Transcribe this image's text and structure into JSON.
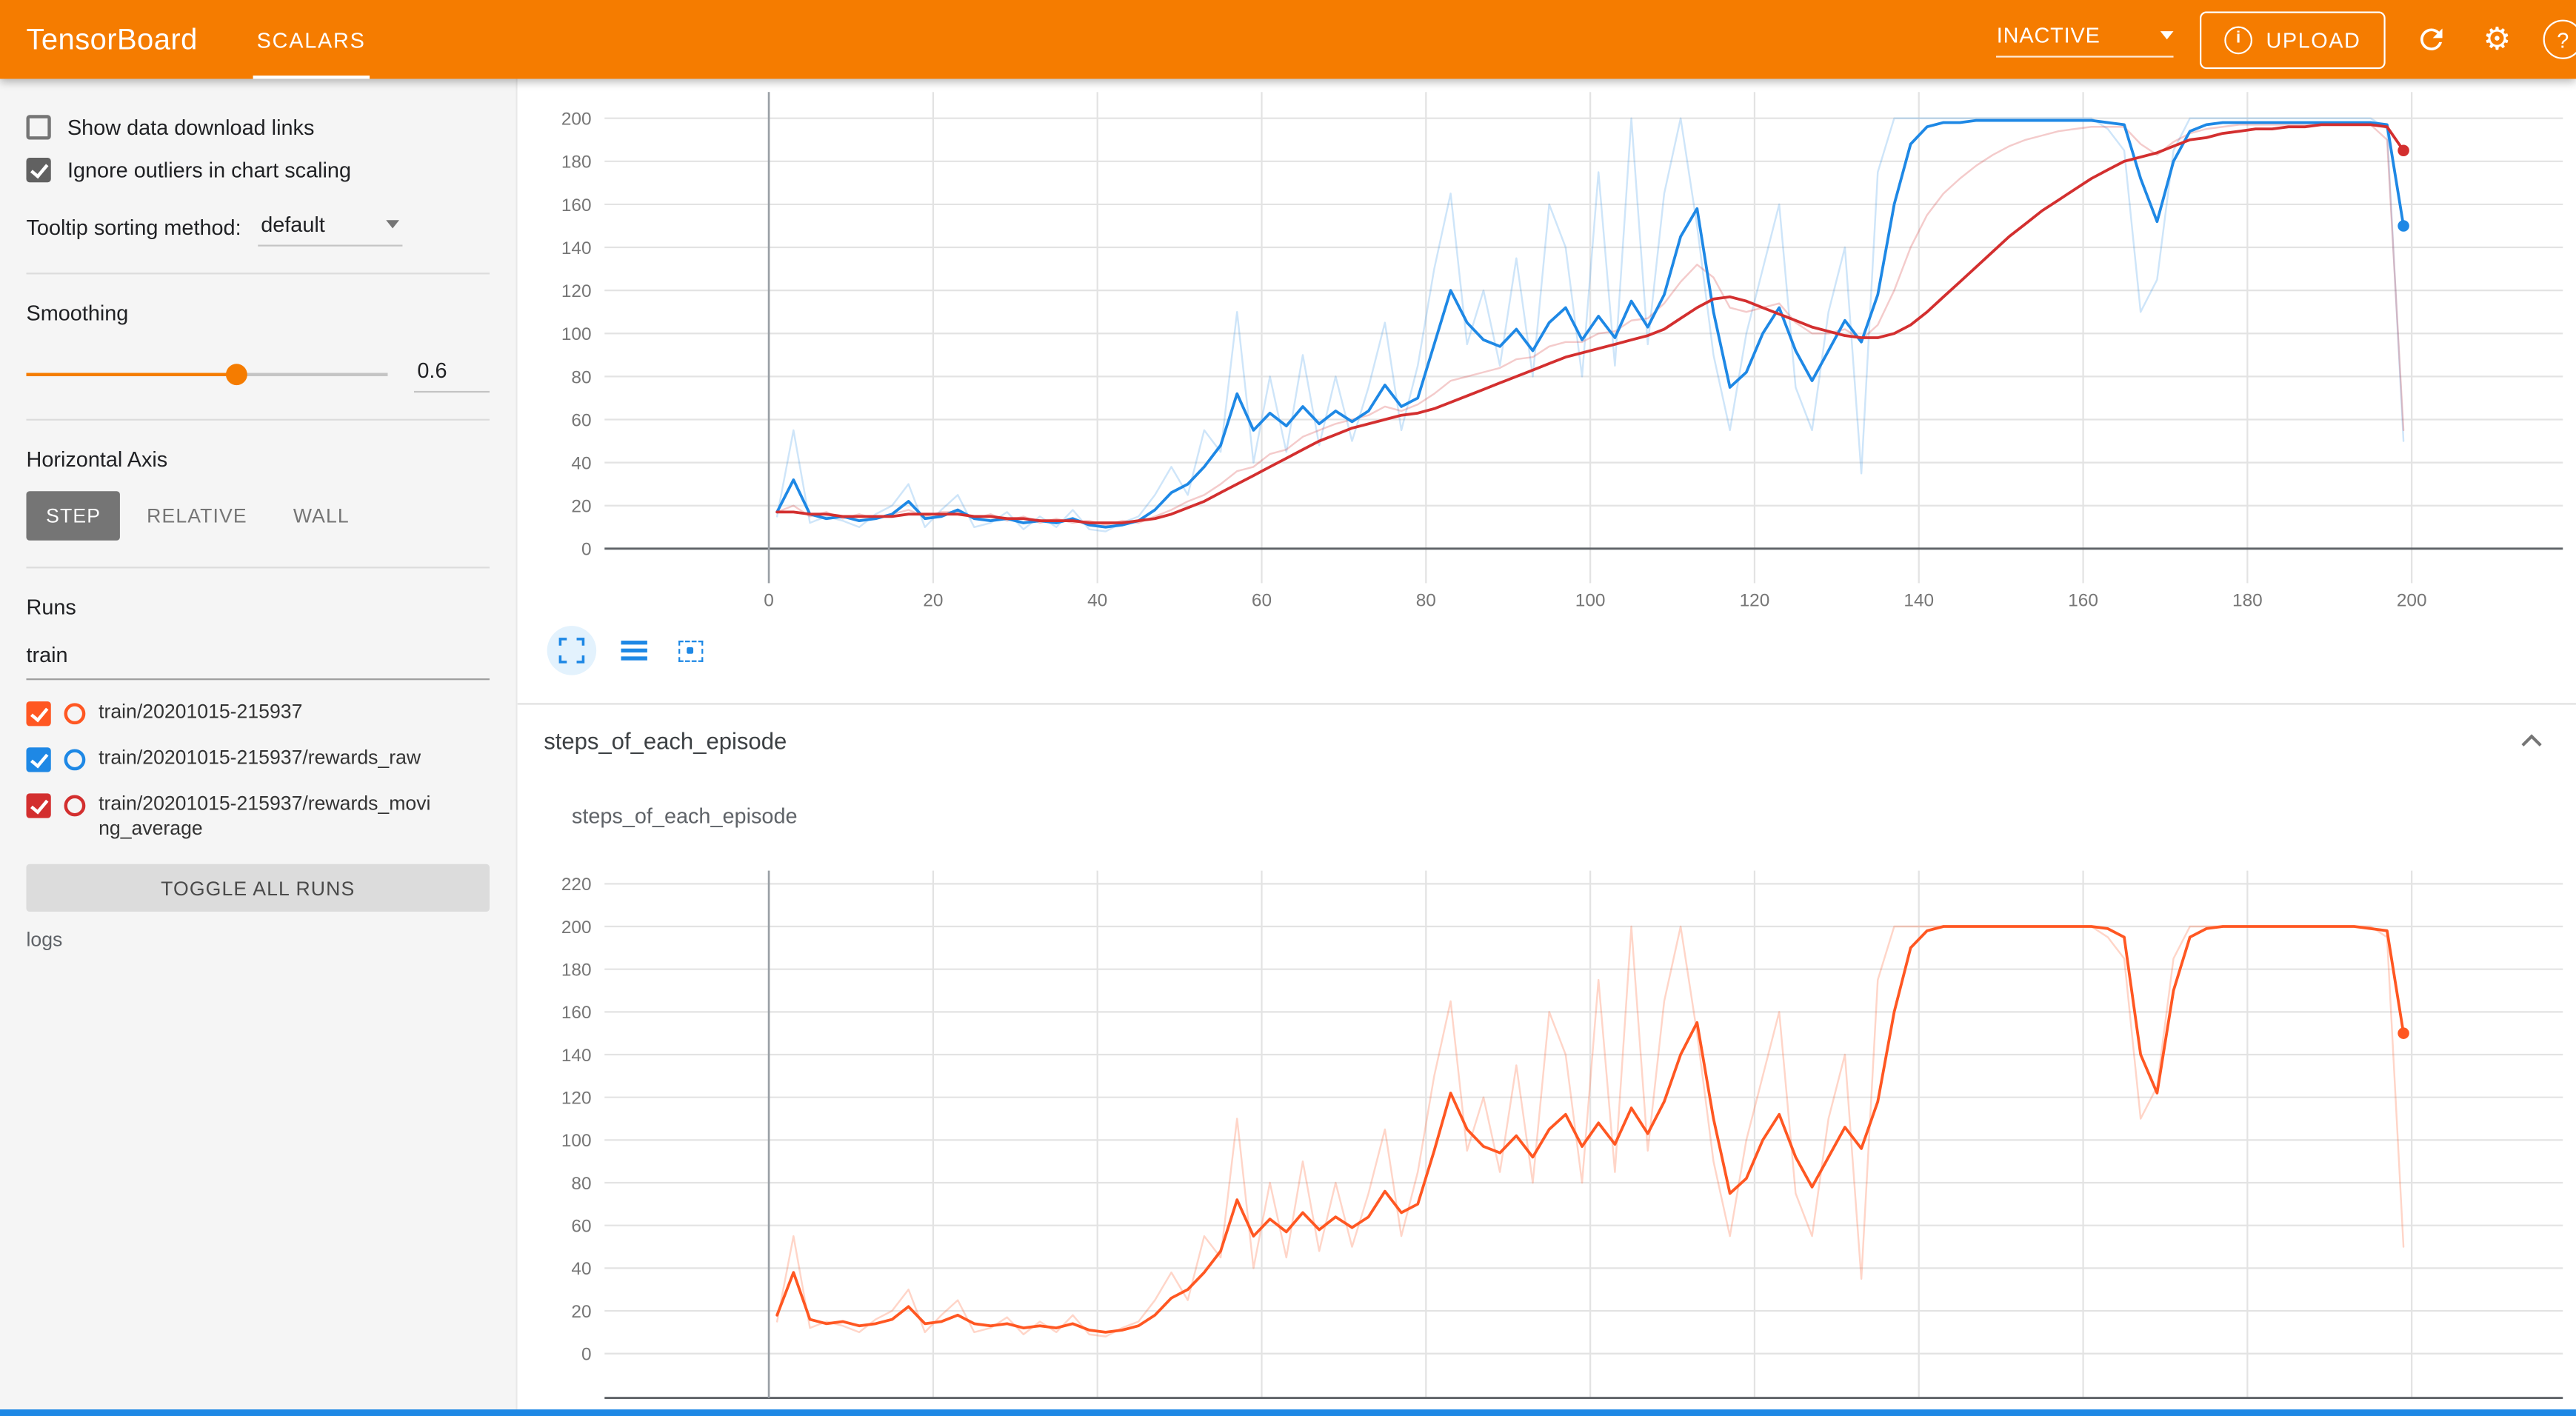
{
  "appbar": {
    "title": "TensorBoard",
    "tabs": [
      {
        "label": "SCALARS",
        "active": true
      }
    ],
    "status_dropdown": "INACTIVE",
    "upload_label": "UPLOAD",
    "icons": [
      "info",
      "refresh",
      "settings",
      "help"
    ],
    "accent_color": "#f57c00"
  },
  "sidebar": {
    "checkbox_download": {
      "label": "Show data download links",
      "checked": false
    },
    "checkbox_outliers": {
      "label": "Ignore outliers in chart scaling",
      "checked": true
    },
    "tooltip_sorting": {
      "label": "Tooltip sorting method:",
      "value": "default"
    },
    "smoothing": {
      "label": "Smoothing",
      "value": "0.6",
      "fraction": 0.58
    },
    "horizontal_axis": {
      "label": "Horizontal Axis",
      "options": [
        "STEP",
        "RELATIVE",
        "WALL"
      ],
      "selected": "STEP"
    },
    "runs": {
      "label": "Runs",
      "filter_value": "train",
      "items": [
        {
          "label": "train/20201015-215937",
          "color": "#ff5722",
          "checked": true
        },
        {
          "label": "train/20201015-215937/rewards_raw",
          "color": "#1e88e5",
          "checked": true
        },
        {
          "label": "train/20201015-215937/rewards_moving_average",
          "color": "#d32f2f",
          "checked": true
        }
      ],
      "toggle_all": "TOGGLE ALL RUNS"
    },
    "logs_label": "logs"
  },
  "main": {
    "section_header": "steps_of_each_episode",
    "card_title": "steps_of_each_episode",
    "toolbar_icons": [
      "expand",
      "view-data-table",
      "fit-domain"
    ]
  },
  "chart_data": [
    {
      "id": "chart1",
      "type": "line",
      "title": "",
      "xlim": [
        0,
        200
      ],
      "ylim": [
        0,
        200
      ],
      "grid": true,
      "xticks": [
        0,
        20,
        40,
        60,
        80,
        100,
        120,
        140,
        160,
        180,
        200
      ],
      "yticks": [
        0,
        20,
        40,
        60,
        80,
        100,
        120,
        140,
        160,
        180,
        200
      ],
      "series": [
        {
          "run": "train/20201015-215937/rewards_raw",
          "kind": "raw",
          "color": "#1e88e5",
          "opacity": 0.22,
          "width": 1.1,
          "x_start": 1,
          "x_step": 2,
          "values": [
            15,
            55,
            12,
            15,
            13,
            10,
            16,
            20,
            30,
            10,
            18,
            25,
            10,
            12,
            17,
            9,
            15,
            10,
            18,
            9,
            8,
            12,
            15,
            25,
            38,
            25,
            55,
            45,
            110,
            40,
            80,
            45,
            90,
            48,
            80,
            50,
            75,
            105,
            55,
            85,
            130,
            165,
            95,
            120,
            85,
            135,
            80,
            160,
            140,
            80,
            175,
            85,
            200,
            95,
            165,
            200,
            150,
            90,
            55,
            100,
            130,
            160,
            75,
            55,
            110,
            140,
            35,
            175,
            200,
            200,
            200,
            200,
            200,
            200,
            200,
            200,
            200,
            200,
            200,
            200,
            200,
            195,
            185,
            110,
            125,
            185,
            200,
            200,
            200,
            200,
            200,
            200,
            200,
            200,
            200,
            200,
            200,
            200,
            195,
            50
          ]
        },
        {
          "run": "train/20201015-215937/rewards_moving_average",
          "kind": "raw",
          "color": "#d32f2f",
          "opacity": 0.25,
          "width": 1.1,
          "x_start": 1,
          "x_step": 2,
          "values": [
            17,
            20,
            15,
            17,
            14,
            16,
            14,
            16,
            18,
            15,
            17,
            17,
            14,
            16,
            13,
            15,
            12,
            14,
            12,
            13,
            11,
            13,
            12,
            15,
            18,
            22,
            25,
            30,
            36,
            38,
            44,
            46,
            52,
            55,
            58,
            60,
            62,
            66,
            64,
            67,
            72,
            78,
            80,
            82,
            84,
            88,
            89,
            94,
            96,
            96,
            100,
            101,
            106,
            107,
            114,
            124,
            132,
            126,
            112,
            110,
            112,
            114,
            105,
            100,
            100,
            102,
            97,
            104,
            120,
            140,
            155,
            165,
            172,
            178,
            183,
            187,
            190,
            192,
            194,
            195,
            196,
            196,
            196,
            188,
            183,
            189,
            193,
            195,
            196,
            197,
            197,
            197,
            197,
            197,
            197,
            197,
            197,
            197,
            190,
            55
          ]
        },
        {
          "run": "train/20201015-215937/rewards_raw",
          "kind": "smoothed",
          "color": "#1e88e5",
          "opacity": 1,
          "width": 1.7,
          "x_start": 1,
          "x_step": 2,
          "values": [
            17,
            32,
            16,
            14,
            15,
            13,
            14,
            16,
            22,
            14,
            15,
            18,
            14,
            13,
            14,
            12,
            13,
            12,
            14,
            11,
            10,
            11,
            13,
            18,
            26,
            30,
            38,
            48,
            72,
            55,
            63,
            57,
            66,
            58,
            64,
            59,
            64,
            76,
            66,
            70,
            95,
            120,
            105,
            97,
            94,
            102,
            92,
            105,
            112,
            97,
            108,
            98,
            115,
            103,
            118,
            145,
            158,
            110,
            75,
            82,
            100,
            112,
            92,
            78,
            92,
            106,
            96,
            118,
            160,
            188,
            196,
            198,
            198,
            199,
            199,
            199,
            199,
            199,
            199,
            199,
            199,
            198,
            197,
            172,
            152,
            180,
            194,
            197,
            198,
            198,
            198,
            198,
            198,
            198,
            198,
            198,
            198,
            198,
            197,
            150
          ]
        },
        {
          "run": "train/20201015-215937/rewards_moving_average",
          "kind": "smoothed",
          "color": "#d32f2f",
          "opacity": 1,
          "width": 1.7,
          "x_start": 1,
          "x_step": 2,
          "values": [
            17,
            17,
            16,
            16,
            15,
            15,
            15,
            15,
            16,
            16,
            16,
            16,
            15,
            15,
            14,
            14,
            13,
            13,
            13,
            12,
            12,
            12,
            13,
            14,
            16,
            19,
            22,
            26,
            30,
            34,
            38,
            42,
            46,
            50,
            53,
            56,
            58,
            60,
            62,
            63,
            65,
            68,
            71,
            74,
            77,
            80,
            83,
            86,
            89,
            91,
            93,
            95,
            97,
            99,
            102,
            107,
            112,
            116,
            117,
            115,
            112,
            109,
            106,
            103,
            101,
            99,
            98,
            98,
            100,
            104,
            110,
            117,
            124,
            131,
            138,
            145,
            151,
            157,
            162,
            167,
            172,
            176,
            180,
            182,
            184,
            187,
            190,
            191,
            193,
            194,
            195,
            195,
            196,
            196,
            197,
            197,
            197,
            197,
            196,
            185
          ]
        }
      ],
      "end_dots": [
        {
          "x": 199,
          "y": 185,
          "color": "#d32f2f"
        },
        {
          "x": 199,
          "y": 150,
          "color": "#1e88e5"
        }
      ]
    },
    {
      "id": "chart2",
      "type": "line",
      "title": "steps_of_each_episode",
      "xlim": [
        0,
        200
      ],
      "ylim": [
        0,
        220
      ],
      "grid": true,
      "xticks": [
        0,
        20,
        40,
        60,
        80,
        100,
        120,
        140,
        160,
        180,
        200
      ],
      "yticks": [
        0,
        20,
        40,
        60,
        80,
        100,
        120,
        140,
        160,
        180,
        200,
        220
      ],
      "series": [
        {
          "run": "train/20201015-215937",
          "kind": "raw",
          "color": "#ff5722",
          "opacity": 0.25,
          "width": 1.1,
          "x_start": 1,
          "x_step": 2,
          "values": [
            15,
            55,
            12,
            15,
            13,
            10,
            16,
            20,
            30,
            10,
            18,
            25,
            10,
            12,
            17,
            9,
            15,
            10,
            18,
            9,
            8,
            12,
            15,
            25,
            38,
            25,
            55,
            45,
            110,
            40,
            80,
            45,
            90,
            48,
            80,
            50,
            75,
            105,
            55,
            85,
            130,
            165,
            95,
            120,
            85,
            135,
            80,
            160,
            140,
            80,
            175,
            85,
            200,
            95,
            165,
            200,
            150,
            90,
            55,
            100,
            130,
            160,
            75,
            55,
            110,
            140,
            35,
            175,
            200,
            200,
            200,
            200,
            200,
            200,
            200,
            200,
            200,
            200,
            200,
            200,
            200,
            195,
            185,
            110,
            125,
            185,
            200,
            200,
            200,
            200,
            200,
            200,
            200,
            200,
            200,
            200,
            200,
            200,
            195,
            50
          ]
        },
        {
          "run": "train/20201015-215937",
          "kind": "smoothed",
          "color": "#ff5722",
          "opacity": 1,
          "width": 1.7,
          "x_start": 1,
          "x_step": 2,
          "values": [
            18,
            38,
            16,
            14,
            15,
            13,
            14,
            16,
            22,
            14,
            15,
            18,
            14,
            13,
            14,
            12,
            13,
            12,
            14,
            11,
            10,
            11,
            13,
            18,
            26,
            30,
            38,
            48,
            72,
            55,
            63,
            57,
            66,
            58,
            64,
            59,
            64,
            76,
            66,
            70,
            95,
            122,
            105,
            97,
            94,
            102,
            92,
            105,
            112,
            97,
            108,
            98,
            115,
            103,
            118,
            140,
            155,
            110,
            75,
            82,
            100,
            112,
            92,
            78,
            92,
            106,
            96,
            118,
            160,
            190,
            198,
            200,
            200,
            200,
            200,
            200,
            200,
            200,
            200,
            200,
            200,
            199,
            195,
            140,
            122,
            170,
            195,
            199,
            200,
            200,
            200,
            200,
            200,
            200,
            200,
            200,
            200,
            199,
            198,
            150
          ]
        }
      ],
      "end_dots": [
        {
          "x": 199,
          "y": 150,
          "color": "#ff5722"
        }
      ]
    }
  ]
}
